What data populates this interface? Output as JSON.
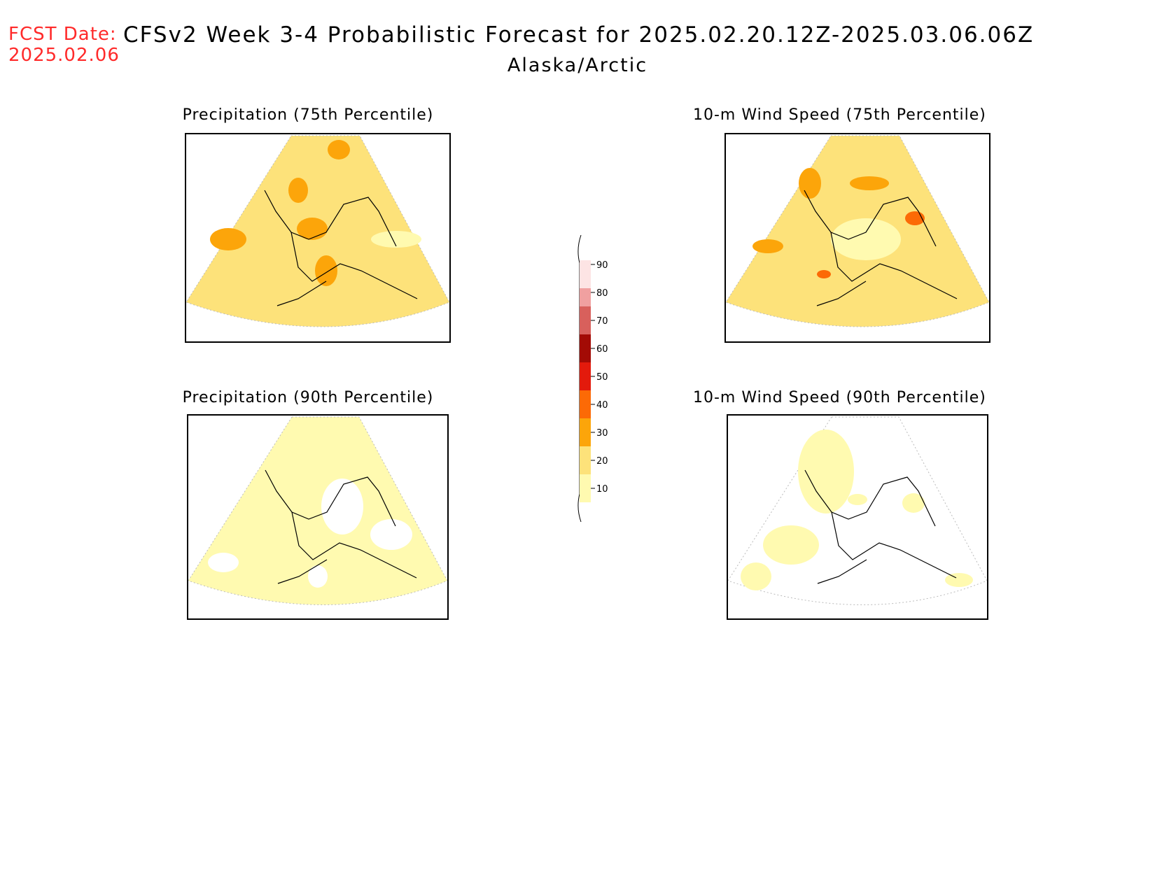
{
  "header": {
    "fcst_label": "FCST Date:",
    "fcst_date": "2025.02.06",
    "title": "CFSv2 Week 3-4 Probabilistic Forecast for 2025.02.20.12Z-2025.03.06.06Z",
    "subtitle": "Alaska/Arctic"
  },
  "panels": [
    {
      "id": "precip-75",
      "title": "Precipitation (75th Percentile)",
      "base_fill": "#fde27a"
    },
    {
      "id": "wind-75",
      "title": "10-m Wind Speed (75th Percentile)",
      "base_fill": "#fde27a"
    },
    {
      "id": "precip-90",
      "title": "Precipitation (90th Percentile)",
      "base_fill": "#fffab0"
    },
    {
      "id": "wind-90",
      "title": "10-m Wind Speed (90th Percentile)",
      "base_fill": "#ffffff"
    }
  ],
  "colorbar": {
    "labels": [
      "10",
      "20",
      "30",
      "40",
      "50",
      "60",
      "70",
      "80",
      "90"
    ],
    "colors": [
      "#fffab0",
      "#fde27a",
      "#fca50a",
      "#fc6a06",
      "#e31a0c",
      "#a30b05",
      "#d8605c",
      "#f0a0a0",
      "#fde4e4"
    ]
  }
}
